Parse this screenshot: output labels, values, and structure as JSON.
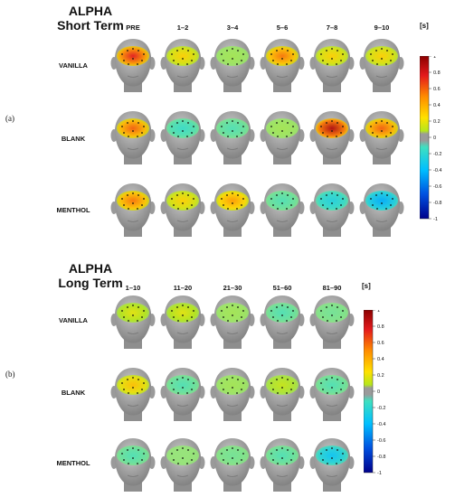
{
  "panels": [
    {
      "label": "(a)",
      "title_line1": "ALPHA",
      "title_line2": "Short Term",
      "unit": "[s]",
      "columns": [
        "PRE",
        "1–2",
        "3–4",
        "5–6",
        "7–8",
        "9–10"
      ],
      "rows": [
        {
          "name": "VANILLA",
          "levels": [
            0.75,
            0.3,
            0.05,
            0.55,
            0.3,
            0.3
          ]
        },
        {
          "name": "BLANK",
          "levels": [
            0.6,
            -0.15,
            -0.1,
            0.05,
            0.9,
            0.6
          ]
        },
        {
          "name": "MENTHOL",
          "levels": [
            0.55,
            0.3,
            0.45,
            -0.1,
            -0.25,
            -0.45
          ]
        }
      ],
      "colorbar_ticks": [
        "1",
        "0.8",
        "0.6",
        "0.4",
        "0.2",
        "0",
        "-0.2",
        "-0.4",
        "-0.6",
        "-0.8",
        "-1"
      ]
    },
    {
      "label": "(b)",
      "title_line1": "ALPHA",
      "title_line2": "Long Term",
      "unit": "[s]",
      "columns": [
        "1–10",
        "11–20",
        "21–30",
        "51–60",
        "81–90"
      ],
      "rows": [
        {
          "name": "VANILLA",
          "levels": [
            0.2,
            0.2,
            0.05,
            -0.1,
            -0.05
          ]
        },
        {
          "name": "BLANK",
          "levels": [
            0.35,
            -0.1,
            0.05,
            0.15,
            -0.1
          ]
        },
        {
          "name": "MENTHOL",
          "levels": [
            -0.1,
            0.0,
            -0.05,
            -0.1,
            -0.35
          ]
        }
      ],
      "colorbar_ticks": [
        "1",
        "0.8",
        "0.6",
        "0.4",
        "0.2",
        "0",
        "-0.2",
        "-0.4",
        "-0.6",
        "-0.8",
        "-1"
      ]
    }
  ]
}
